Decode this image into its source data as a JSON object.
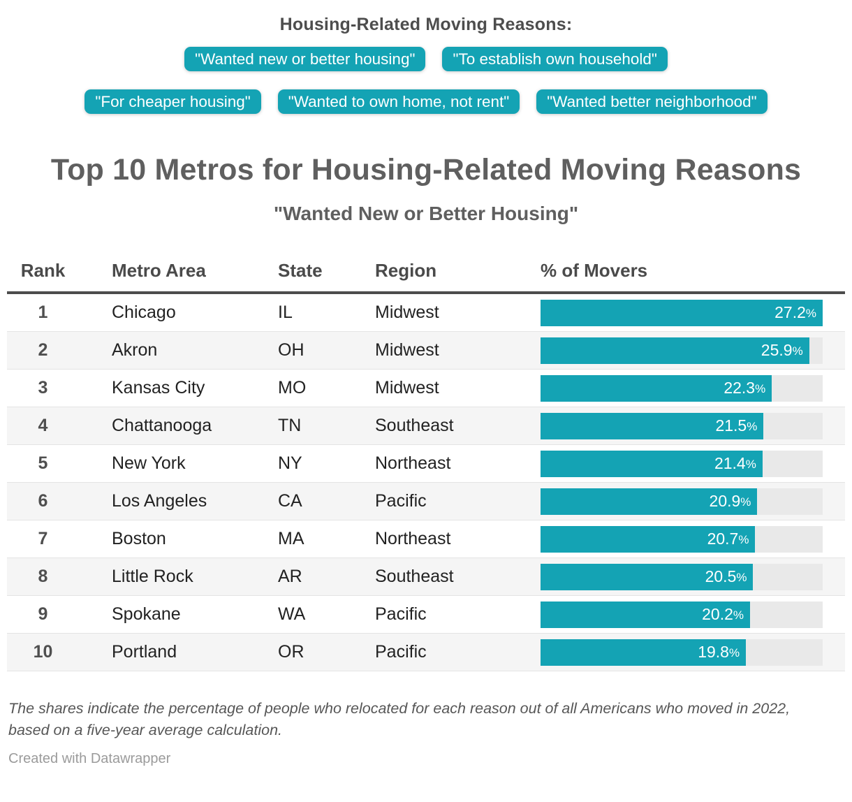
{
  "colors": {
    "accent": "#14a3b4",
    "bar_track": "#e9e9e9",
    "row_stripe": "#f5f5f5",
    "header_rule": "#4c4c4c"
  },
  "legend": {
    "heading": "Housing-Related Moving Reasons:",
    "pills": [
      "\"Wanted new or better housing\"",
      "\"To establish own household\"",
      "\"For cheaper housing\"",
      "\"Wanted to own home, not rent\"",
      "\"Wanted better neighborhood\""
    ]
  },
  "header": {
    "title": "Top 10 Metros for Housing-Related Moving Reasons",
    "subtitle": "\"Wanted New or Better Housing\""
  },
  "table": {
    "headers": {
      "rank": "Rank",
      "metro": "Metro Area",
      "state": "State",
      "region": "Region",
      "movers": "% of Movers"
    },
    "max_value": 27.2,
    "rows": [
      {
        "rank": "1",
        "metro": "Chicago",
        "state": "IL",
        "region": "Midwest",
        "value": 27.2,
        "label": "27.2%"
      },
      {
        "rank": "2",
        "metro": "Akron",
        "state": "OH",
        "region": "Midwest",
        "value": 25.9,
        "label": "25.9%"
      },
      {
        "rank": "3",
        "metro": "Kansas City",
        "state": "MO",
        "region": "Midwest",
        "value": 22.3,
        "label": "22.3%"
      },
      {
        "rank": "4",
        "metro": "Chattanooga",
        "state": "TN",
        "region": "Southeast",
        "value": 21.5,
        "label": "21.5%"
      },
      {
        "rank": "5",
        "metro": "New York",
        "state": "NY",
        "region": "Northeast",
        "value": 21.4,
        "label": "21.4%"
      },
      {
        "rank": "6",
        "metro": "Los Angeles",
        "state": "CA",
        "region": "Pacific",
        "value": 20.9,
        "label": "20.9%"
      },
      {
        "rank": "7",
        "metro": "Boston",
        "state": "MA",
        "region": "Northeast",
        "value": 20.7,
        "label": "20.7%"
      },
      {
        "rank": "8",
        "metro": "Little Rock",
        "state": "AR",
        "region": "Southeast",
        "value": 20.5,
        "label": "20.5%"
      },
      {
        "rank": "9",
        "metro": "Spokane",
        "state": "WA",
        "region": "Pacific",
        "value": 20.2,
        "label": "20.2%"
      },
      {
        "rank": "10",
        "metro": "Portland",
        "state": "OR",
        "region": "Pacific",
        "value": 19.8,
        "label": "19.8%"
      }
    ]
  },
  "footer": {
    "note": "The shares indicate the percentage of people who relocated for each reason out of all Americans who moved in 2022, based on a five-year average calculation.",
    "credit": "Created with Datawrapper"
  },
  "chart_data": {
    "type": "bar",
    "orientation": "horizontal",
    "title": "Top 10 Metros for Housing-Related Moving Reasons",
    "subtitle": "\"Wanted New or Better Housing\"",
    "categories": [
      "Chicago, IL",
      "Akron, OH",
      "Kansas City, MO",
      "Chattanooga, TN",
      "New York, NY",
      "Los Angeles, CA",
      "Boston, MA",
      "Little Rock, AR",
      "Spokane, WA",
      "Portland, OR"
    ],
    "regions": [
      "Midwest",
      "Midwest",
      "Midwest",
      "Southeast",
      "Northeast",
      "Pacific",
      "Northeast",
      "Southeast",
      "Pacific",
      "Pacific"
    ],
    "values": [
      27.2,
      25.9,
      22.3,
      21.5,
      21.4,
      20.9,
      20.7,
      20.5,
      20.2,
      19.8
    ],
    "xlabel": "% of Movers",
    "xlim": [
      0,
      27.2
    ],
    "grid": false,
    "legend_position": "none"
  }
}
